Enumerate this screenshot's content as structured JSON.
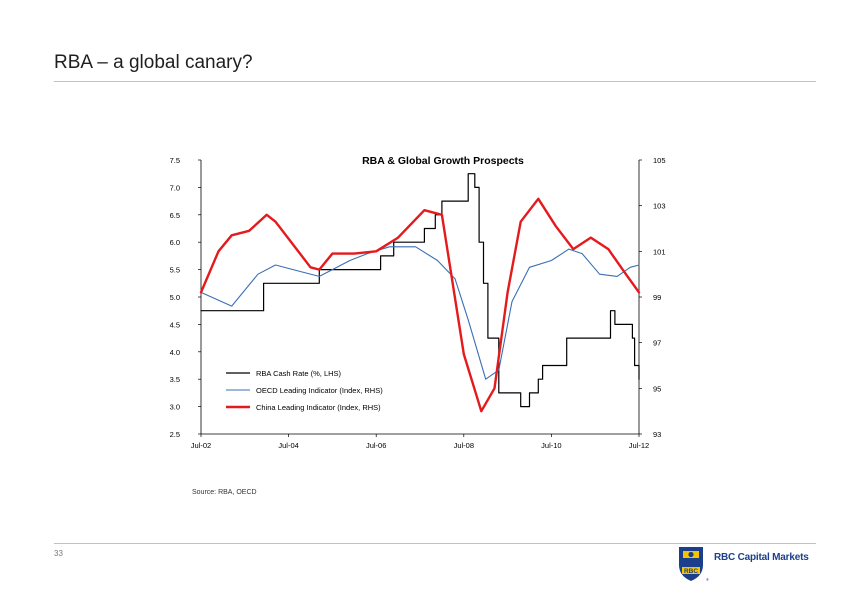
{
  "slide": {
    "title": "RBA – a global canary?",
    "source": "Source: RBA, OECD",
    "page_number": "33"
  },
  "logo": {
    "brand": "RBC Capital Markets",
    "emblem_text": "RBC",
    "mark": "®",
    "icon": "rbc-lion-shield-icon"
  },
  "colors": {
    "cash_rate": "#000000",
    "oecd": "#3a6fb5",
    "china": "#e41a1c",
    "accent": "#1b3f8a",
    "emblem_yellow": "#f5c400"
  },
  "chart_data": {
    "type": "line",
    "title": "RBA & Global Growth Prospects",
    "x_ticks": [
      "Jul-02",
      "Jul-04",
      "Jul-06",
      "Jul-08",
      "Jul-10",
      "Jul-12"
    ],
    "x_tick_values": [
      2002.5,
      2004.5,
      2006.5,
      2008.5,
      2010.5,
      2012.5
    ],
    "xlim": [
      2002.5,
      2012.5
    ],
    "left_axis": {
      "label": "LHS",
      "ylim": [
        2.5,
        7.5
      ],
      "ticks": [
        "7.5",
        "7.0",
        "6.5",
        "6.0",
        "5.5",
        "5.0",
        "4.5",
        "4.0",
        "3.5",
        "3.0",
        "2.5"
      ]
    },
    "right_axis": {
      "label": "RHS",
      "ylim": [
        93,
        105
      ],
      "ticks": [
        "105",
        "103",
        "101",
        "99",
        "97",
        "95",
        "93"
      ]
    },
    "legend": [
      "RBA Cash Rate (%, LHS)",
      "OECD Leading Indicator (Index, RHS)",
      "China Leading Indicator (Index, RHS)"
    ],
    "legend_position": "bottom-left",
    "series": [
      {
        "name": "RBA Cash Rate (%, LHS)",
        "axis": "left",
        "step": true,
        "x": [
          2002.5,
          2003.85,
          2003.93,
          2005.2,
          2006.4,
          2006.6,
          2006.9,
          2007.6,
          2007.85,
          2008.0,
          2008.6,
          2008.75,
          2008.85,
          2008.95,
          2009.05,
          2009.3,
          2009.8,
          2009.9,
          2010.0,
          2010.2,
          2010.3,
          2010.85,
          2011.85,
          2011.95,
          2012.35,
          2012.4,
          2012.5
        ],
        "values": [
          4.75,
          4.75,
          5.25,
          5.5,
          5.5,
          5.75,
          6.0,
          6.25,
          6.5,
          6.75,
          7.25,
          7.0,
          6.0,
          5.25,
          4.25,
          3.25,
          3.0,
          3.0,
          3.25,
          3.5,
          3.75,
          4.25,
          4.75,
          4.5,
          4.25,
          3.75,
          3.5
        ]
      },
      {
        "name": "OECD Leading Indicator (Index, RHS)",
        "axis": "right",
        "x": [
          2002.5,
          2003.2,
          2003.8,
          2004.2,
          2004.8,
          2005.2,
          2005.5,
          2005.9,
          2006.3,
          2006.8,
          2007.4,
          2007.9,
          2008.3,
          2008.6,
          2009.0,
          2009.3,
          2009.6,
          2010.0,
          2010.5,
          2010.9,
          2011.2,
          2011.6,
          2012.0,
          2012.3,
          2012.5
        ],
        "values": [
          99.2,
          98.6,
          100.0,
          100.4,
          100.1,
          99.9,
          100.2,
          100.6,
          100.9,
          101.2,
          101.2,
          100.6,
          99.8,
          98.0,
          95.4,
          95.8,
          98.8,
          100.3,
          100.6,
          101.1,
          100.9,
          100.0,
          99.9,
          100.3,
          100.4
        ]
      },
      {
        "name": "China Leading Indicator (Index, RHS)",
        "axis": "right",
        "x": [
          2002.5,
          2002.9,
          2003.2,
          2003.6,
          2004.0,
          2004.2,
          2004.6,
          2005.0,
          2005.2,
          2005.5,
          2006.0,
          2006.5,
          2007.0,
          2007.6,
          2008.0,
          2008.5,
          2008.9,
          2009.2,
          2009.5,
          2009.8,
          2010.2,
          2010.6,
          2011.0,
          2011.4,
          2011.8,
          2012.2,
          2012.5
        ],
        "values": [
          99.2,
          101.0,
          101.7,
          101.9,
          102.6,
          102.3,
          101.3,
          100.3,
          100.2,
          100.9,
          100.9,
          101.0,
          101.6,
          102.8,
          102.6,
          96.5,
          94.0,
          95.0,
          99.2,
          102.3,
          103.3,
          102.1,
          101.1,
          101.6,
          101.1,
          100.0,
          99.2
        ]
      }
    ]
  }
}
